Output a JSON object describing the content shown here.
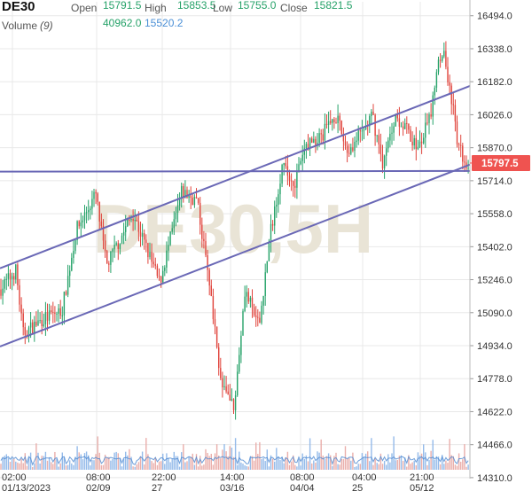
{
  "header": {
    "symbol": "DE30",
    "open_label": "Open",
    "open_value": "15791.5",
    "high_label": "High",
    "high_value": "15853.5",
    "low_label": "Low",
    "low_value": "15755.0",
    "close_label": "Close",
    "close_value": "15821.5",
    "volume_label": "Volume",
    "volume_period": "(9)",
    "volume_value": "40962.0",
    "volume_ma_value": "15520.2"
  },
  "watermark": "DE30,5H",
  "last_price_label": "15797.5",
  "colors": {
    "up": "#26a269",
    "down": "#e0443c",
    "trendline": "#6a68b6",
    "volume": "#8ab4e8",
    "volume_ma": "#4a86d0",
    "price_tag": "#ef5350",
    "grid": "#e8e8e8",
    "watermark": "#e9e4d6"
  },
  "chart_data": {
    "type": "candlestick",
    "title": "DE30",
    "timeframe": "5H",
    "ylim": [
      14230,
      16560
    ],
    "y_ticks": [
      "16494.0",
      "16338.0",
      "16182.0",
      "16026.0",
      "15870.0",
      "15714.0",
      "15558.0",
      "15402.0",
      "15246.0",
      "15090.0",
      "14934.0",
      "14778.0",
      "14622.0",
      "14466.0",
      "14310.0"
    ],
    "x_tick_labels": [
      {
        "top": "02:00",
        "bottom": "01/13/2023"
      },
      {
        "top": "08:00",
        "bottom": "02/09"
      },
      {
        "top": "22:00",
        "bottom": "27"
      },
      {
        "top": "14:00",
        "bottom": "03/16"
      },
      {
        "top": "08:00",
        "bottom": "04/04"
      },
      {
        "top": "04:00",
        "bottom": "25"
      },
      {
        "top": "21:00",
        "bottom": "05/12"
      }
    ],
    "price_path": [
      [
        0,
        15200
      ],
      [
        18,
        15290
      ],
      [
        26,
        14990
      ],
      [
        48,
        15060
      ],
      [
        70,
        15100
      ],
      [
        86,
        15480
      ],
      [
        108,
        15650
      ],
      [
        120,
        15310
      ],
      [
        150,
        15560
      ],
      [
        180,
        15230
      ],
      [
        205,
        15660
      ],
      [
        222,
        15620
      ],
      [
        237,
        15220
      ],
      [
        249,
        14760
      ],
      [
        264,
        14630
      ],
      [
        276,
        15200
      ],
      [
        292,
        15020
      ],
      [
        305,
        15470
      ],
      [
        318,
        15780
      ],
      [
        332,
        15700
      ],
      [
        346,
        15890
      ],
      [
        362,
        15920
      ],
      [
        378,
        16030
      ],
      [
        392,
        15850
      ],
      [
        408,
        15940
      ],
      [
        420,
        16020
      ],
      [
        432,
        15790
      ],
      [
        446,
        16030
      ],
      [
        458,
        15960
      ],
      [
        472,
        15860
      ],
      [
        486,
        16030
      ],
      [
        494,
        16300
      ],
      [
        500,
        16330
      ],
      [
        507,
        16160
      ],
      [
        512,
        16020
      ],
      [
        516,
        15880
      ],
      [
        524,
        15810
      ],
      [
        529,
        15790
      ]
    ],
    "last_price": 15797.5,
    "volume": {
      "period": 9,
      "last": 40962.0,
      "ma": 15520.2
    },
    "trendlines": [
      {
        "name": "support-horizontal",
        "start": [
          0,
          15757
        ],
        "end": [
          530,
          15760
        ]
      },
      {
        "name": "channel-upper",
        "start": [
          0,
          15300
        ],
        "end": [
          530,
          16162
        ]
      },
      {
        "name": "channel-lower",
        "start": [
          0,
          14930
        ],
        "end": [
          530,
          15790
        ]
      }
    ]
  }
}
